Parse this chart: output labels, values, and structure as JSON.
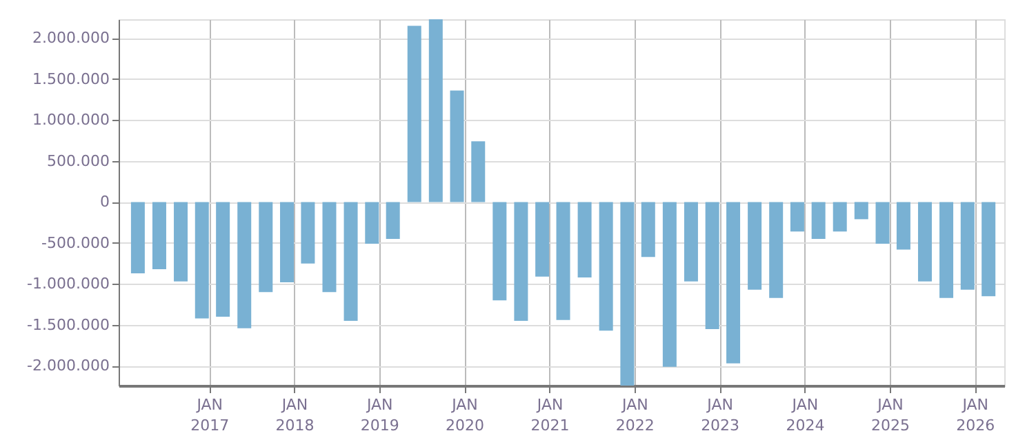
{
  "chart_data": {
    "type": "bar",
    "x": [
      "2016-03",
      "2016-06",
      "2016-09",
      "2016-12",
      "2017-03",
      "2017-06",
      "2017-09",
      "2017-12",
      "2018-03",
      "2018-06",
      "2018-09",
      "2018-12",
      "2019-03",
      "2019-06",
      "2019-09",
      "2019-12",
      "2020-03",
      "2020-06",
      "2020-09",
      "2020-12",
      "2021-03",
      "2021-06",
      "2021-09",
      "2021-12",
      "2022-03",
      "2022-06",
      "2022-09",
      "2022-12",
      "2023-03",
      "2023-06",
      "2023-09",
      "2023-12",
      "2024-03",
      "2024-06",
      "2024-09",
      "2024-12",
      "2025-03",
      "2025-06",
      "2025-09",
      "2025-12",
      "2026-03"
    ],
    "values": [
      -870000,
      -820000,
      -970000,
      -1420000,
      -1400000,
      -1540000,
      -1100000,
      -980000,
      -750000,
      -1100000,
      -1450000,
      -510000,
      -450000,
      2150000,
      2230000,
      1360000,
      740000,
      -1200000,
      -1450000,
      -910000,
      -1440000,
      -920000,
      -1570000,
      -2240000,
      -670000,
      -2010000,
      -970000,
      -1550000,
      -1970000,
      -1070000,
      -1170000,
      -360000,
      -450000,
      -360000,
      -210000,
      -510000,
      -580000,
      -970000,
      -1170000,
      -1070000,
      -1150000
    ],
    "color": "#79b1d3",
    "xlim": [
      "2016-01-08",
      "2026-04-08"
    ],
    "xticks": [
      {
        "value": "2017-01-01",
        "label": "JAN 2017"
      },
      {
        "value": "2018-01-01",
        "label": "JAN 2018"
      },
      {
        "value": "2019-01-01",
        "label": "JAN 2019"
      },
      {
        "value": "2020-01-01",
        "label": "JAN 2020"
      },
      {
        "value": "2021-01-01",
        "label": "JAN 2021"
      },
      {
        "value": "2022-01-01",
        "label": "JAN 2022"
      },
      {
        "value": "2023-01-01",
        "label": "JAN 2023"
      },
      {
        "value": "2024-01-01",
        "label": "JAN 2024"
      },
      {
        "value": "2025-01-01",
        "label": "JAN 2025"
      },
      {
        "value": "2026-01-01",
        "label": "JAN 2026"
      }
    ],
    "ylim": [
      -2240000,
      2230000
    ],
    "yticks": [
      {
        "value": -2000000,
        "label": "-2.000.000"
      },
      {
        "value": -1500000,
        "label": "-1.500.000"
      },
      {
        "value": -1000000,
        "label": "-1.000.000"
      },
      {
        "value": -500000,
        "label": "-500.000"
      },
      {
        "value": 0,
        "label": "0"
      },
      {
        "value": 500000,
        "label": "500.000"
      },
      {
        "value": 1000000,
        "label": "1.000.000"
      },
      {
        "value": 1500000,
        "label": "1.500.000"
      },
      {
        "value": 2000000,
        "label": "2.000.000"
      }
    ],
    "grid": true
  }
}
